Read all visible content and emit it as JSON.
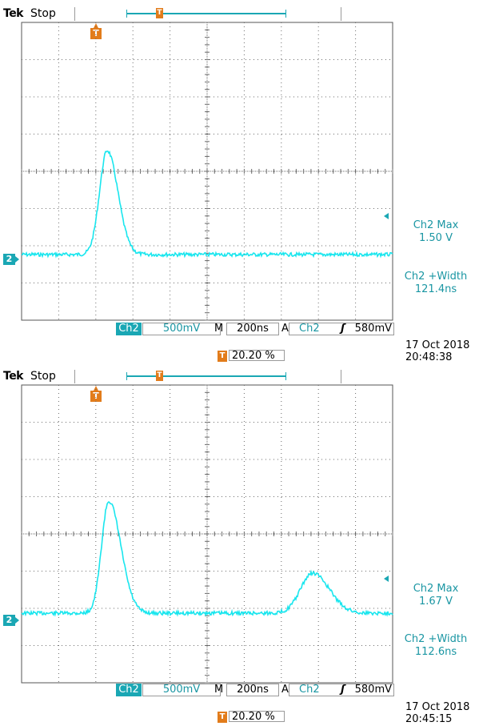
{
  "captures": [
    {
      "brand": "Tek",
      "status": "Stop",
      "trigger_marker": "T",
      "channel_marker": "2",
      "measurements": [
        {
          "label": "Ch2 Max",
          "value": "1.50 V"
        },
        {
          "label": "Ch2 +Width",
          "value": "121.4ns"
        }
      ],
      "statusbar": {
        "channel": "Ch2",
        "volts_per_div": "500mV",
        "m_label": "M",
        "time_per_div": "200ns",
        "a_label": "A",
        "trigger_source": "Ch2",
        "trigger_edge": "ʃ",
        "trigger_level": "580mV"
      },
      "date": "17 Oct  2018",
      "time": "20:48:38",
      "trigger_position": "20.20 %",
      "colors": {
        "trace": "#19e6ee",
        "accent": "#1aa7b4",
        "marker": "#e27c1b"
      }
    },
    {
      "brand": "Tek",
      "status": "Stop",
      "trigger_marker": "T",
      "channel_marker": "2",
      "measurements": [
        {
          "label": "Ch2 Max",
          "value": "1.67 V"
        },
        {
          "label": "Ch2 +Width",
          "value": "112.6ns"
        }
      ],
      "statusbar": {
        "channel": "Ch2",
        "volts_per_div": "500mV",
        "m_label": "M",
        "time_per_div": "200ns",
        "a_label": "A",
        "trigger_source": "Ch2",
        "trigger_edge": "ʃ",
        "trigger_level": "580mV"
      },
      "date": "17 Oct  2018",
      "time": "20:45:15",
      "trigger_position": "20.20 %",
      "colors": {
        "trace": "#19e6ee",
        "accent": "#1aa7b4",
        "marker": "#e27c1b"
      }
    }
  ]
}
